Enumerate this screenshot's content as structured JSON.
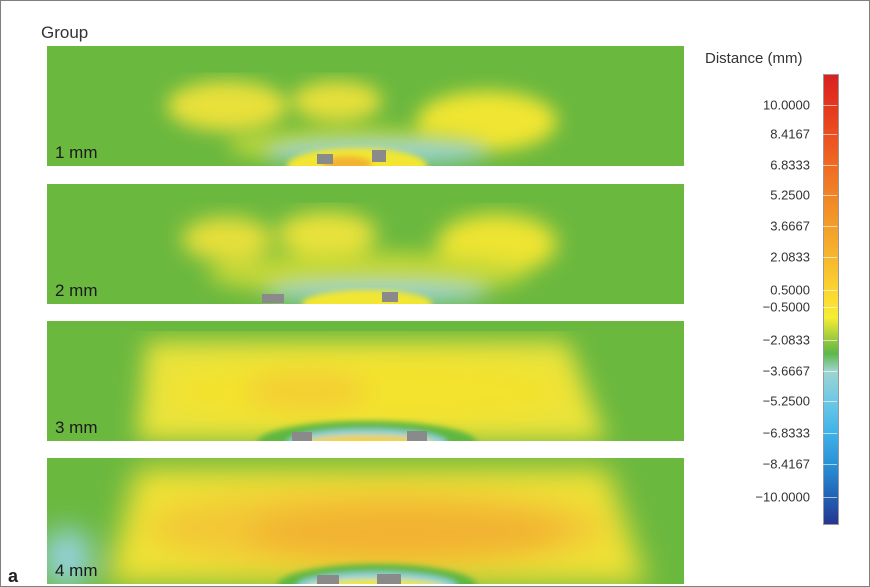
{
  "figure": {
    "group_title": "Group",
    "panel_letter": "a"
  },
  "panels": [
    {
      "label": "1 mm"
    },
    {
      "label": "2 mm"
    },
    {
      "label": "3 mm"
    },
    {
      "label": "4 mm"
    }
  ],
  "legend": {
    "title": "Distance (mm)",
    "ticks": [
      "10.0000",
      "8.4167",
      "6.8333",
      "5.2500",
      "3.6667",
      "2.0833",
      "0.5000",
      "−0.5000",
      "−2.0833",
      "−3.6667",
      "−5.2500",
      "−6.8333",
      "−8.4167",
      "−10.0000"
    ]
  },
  "colors": {
    "green": "#6bb83f",
    "yellow": "#f3e630",
    "orange": "#f2b233",
    "light_blue": "#93d2dc",
    "gray": "#8a8a8a"
  }
}
